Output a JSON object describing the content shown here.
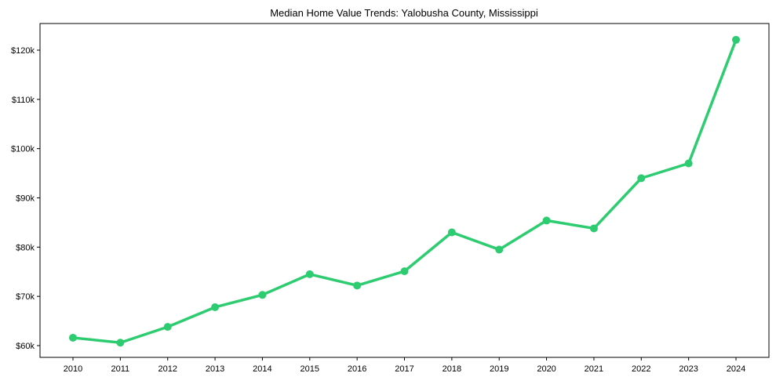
{
  "chart_data": {
    "type": "line",
    "title": "Median Home Value Trends: Yalobusha County, Mississippi",
    "xlabel": "",
    "ylabel": "",
    "categories": [
      "2010",
      "2011",
      "2012",
      "2013",
      "2014",
      "2015",
      "2016",
      "2017",
      "2018",
      "2019",
      "2020",
      "2021",
      "2022",
      "2023",
      "2024"
    ],
    "series": [
      {
        "name": "Median Home Value",
        "color": "#2ecc71",
        "values": [
          61600,
          60600,
          63800,
          67800,
          70300,
          74500,
          72200,
          75100,
          83000,
          79500,
          85400,
          83800,
          94000,
          97000,
          122100
        ]
      }
    ],
    "yticks": [
      60000,
      70000,
      80000,
      90000,
      100000,
      110000,
      120000
    ],
    "ytick_labels": [
      "$60k",
      "$70k",
      "$80k",
      "$90k",
      "$100k",
      "$110k",
      "$120k"
    ],
    "ylim": [
      57500,
      125100
    ],
    "grid": false,
    "legend": null
  }
}
